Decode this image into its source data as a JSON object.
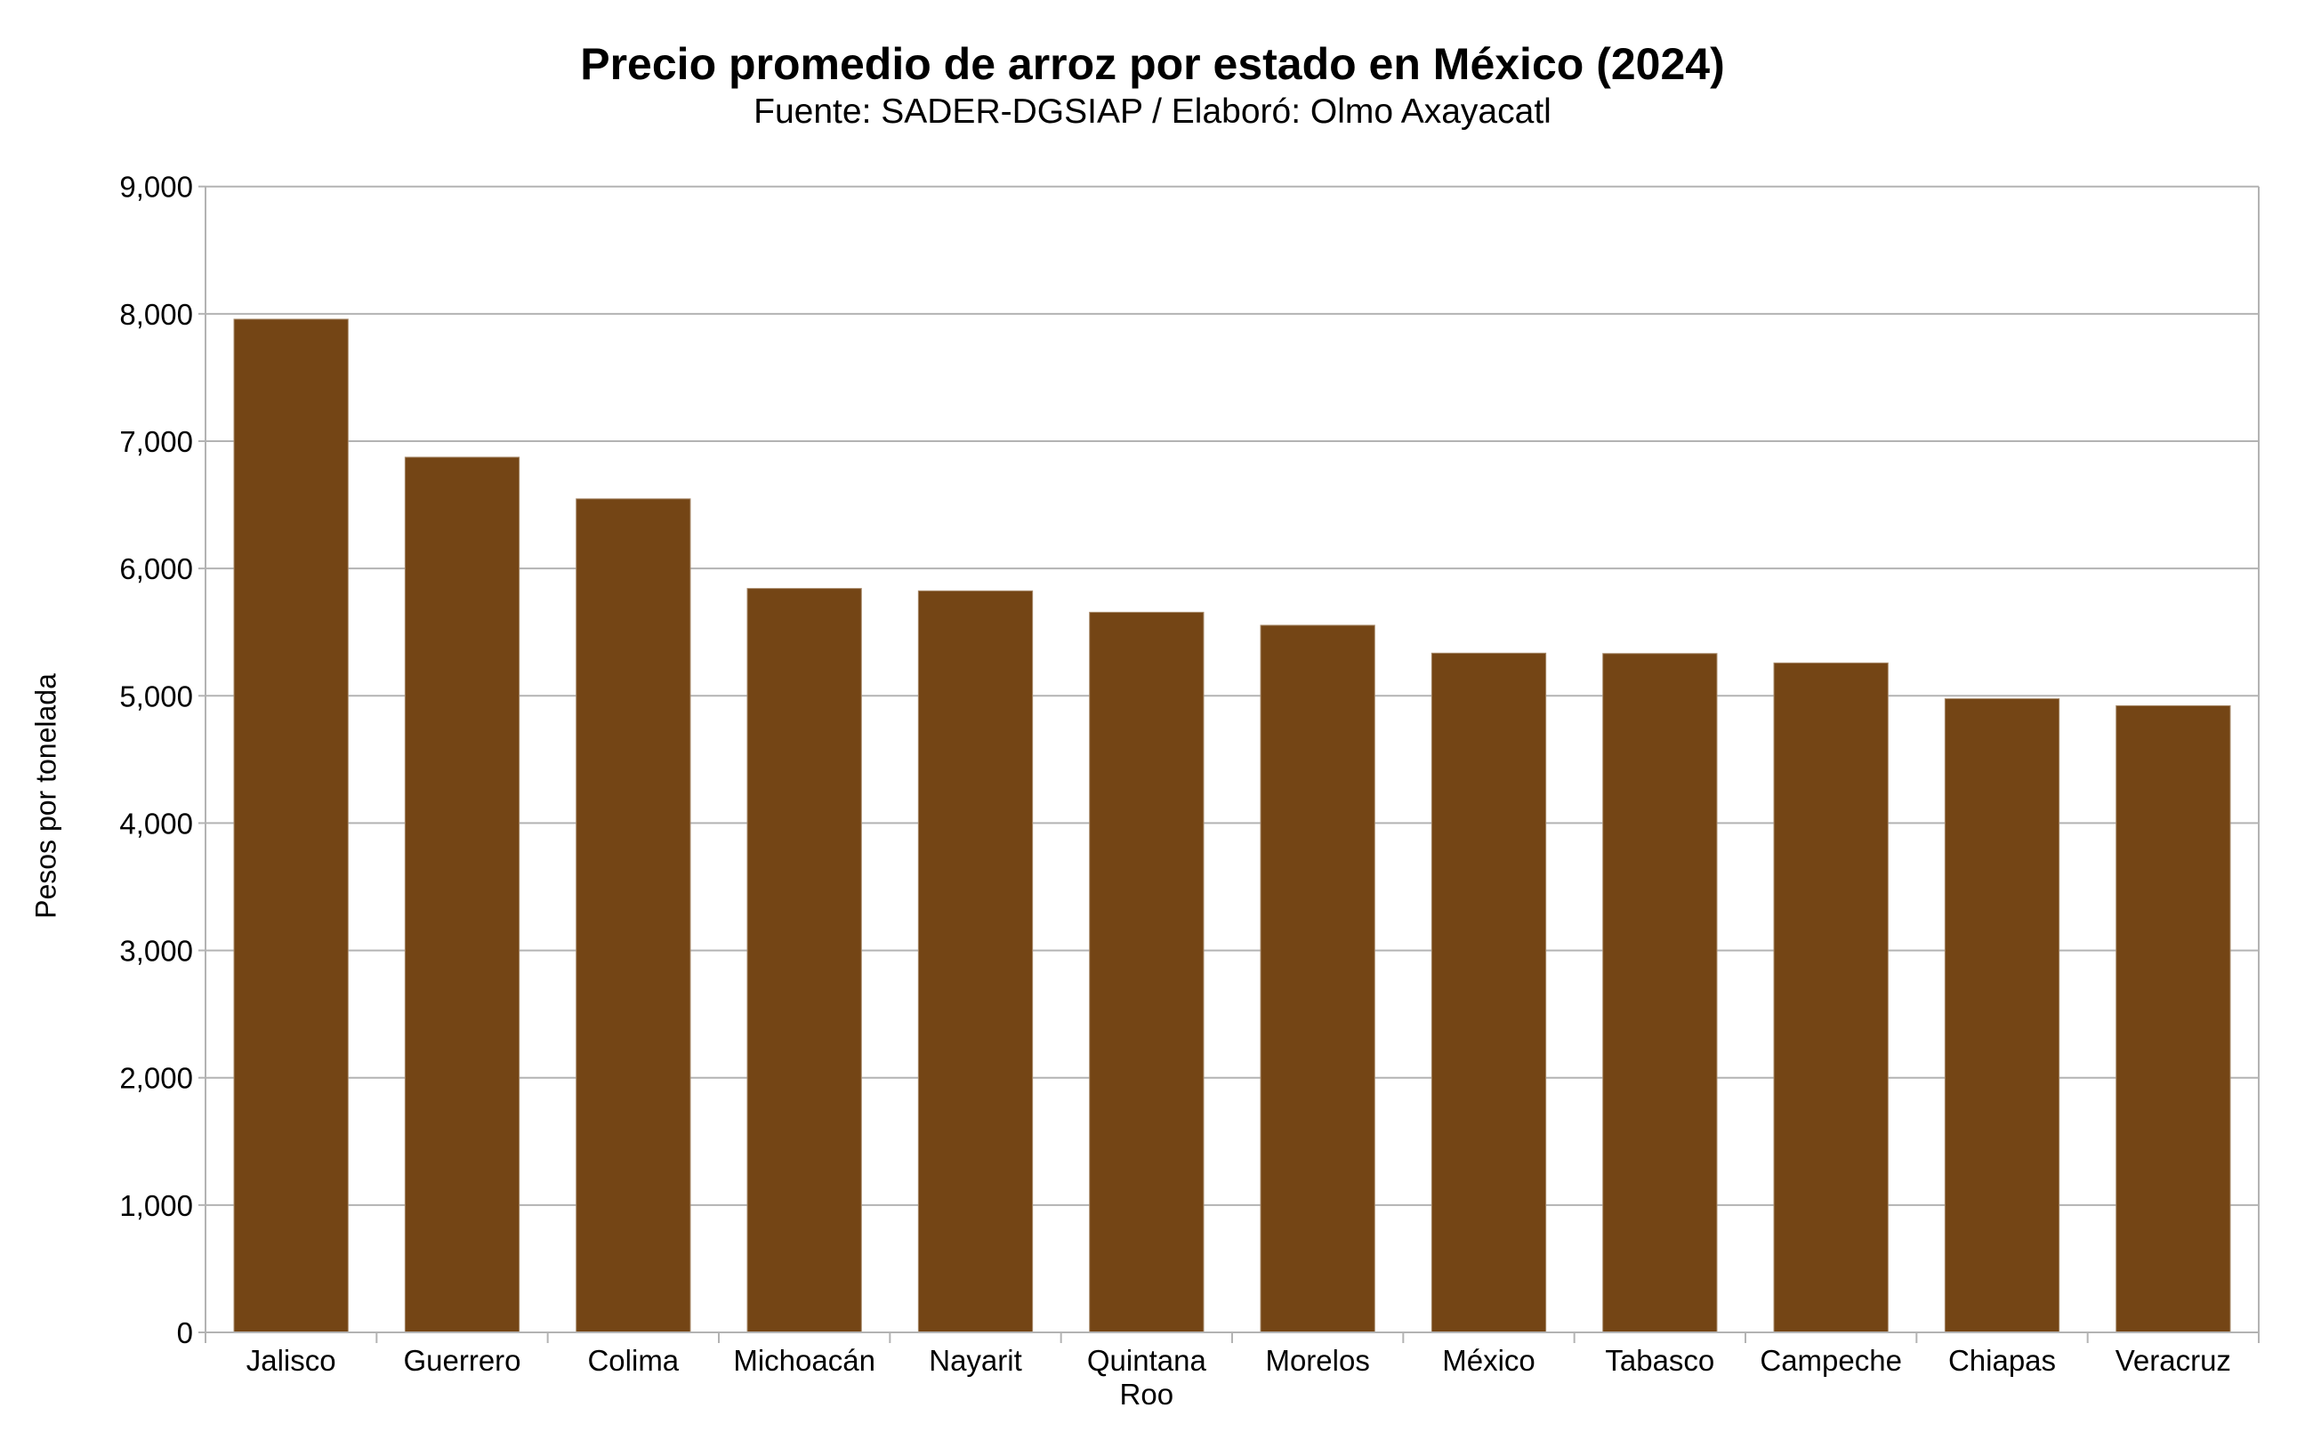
{
  "chart": {
    "title": "Precio promedio de arroz por estado en México (2024)",
    "subtitle": "Fuente: SADER-DGSIAP / Elaboró: Olmo Axayacatl",
    "ylabel": "Pesos por tonelada",
    "bar_color": "#744515",
    "grid_color": "#b3b3b3"
  },
  "chart_data": {
    "type": "bar",
    "title": "Precio promedio de arroz por estado en México (2024)",
    "subtitle": "Fuente: SADER-DGSIAP / Elaboró: Olmo Axayacatl",
    "xlabel": "",
    "ylabel": "Pesos por tonelada",
    "ylim": [
      0,
      9000
    ],
    "yticks": [
      0,
      1000,
      2000,
      3000,
      4000,
      5000,
      6000,
      7000,
      8000,
      9000
    ],
    "ytick_labels": [
      "0",
      "1,000",
      "2,000",
      "3,000",
      "4,000",
      "5,000",
      "6,000",
      "7,000",
      "8,000",
      "9,000"
    ],
    "grid": true,
    "legend": null,
    "categories": [
      "Jalisco",
      "Guerrero",
      "Colima",
      "Michoacán",
      "Nayarit",
      "Quintana Roo",
      "Morelos",
      "México",
      "Tabasco",
      "Campeche",
      "Chiapas",
      "Veracruz"
    ],
    "category_lines": [
      [
        "Jalisco"
      ],
      [
        "Guerrero"
      ],
      [
        "Colima"
      ],
      [
        "Michoacán"
      ],
      [
        "Nayarit"
      ],
      [
        "Quintana",
        "Roo"
      ],
      [
        "Morelos"
      ],
      [
        "México"
      ],
      [
        "Tabasco"
      ],
      [
        "Campeche"
      ],
      [
        "Chiapas"
      ],
      [
        "Veracruz"
      ]
    ],
    "values": [
      7958,
      6874,
      6547,
      5843,
      5824,
      5656,
      5554,
      5335,
      5332,
      5258,
      4977,
      4922
    ]
  }
}
